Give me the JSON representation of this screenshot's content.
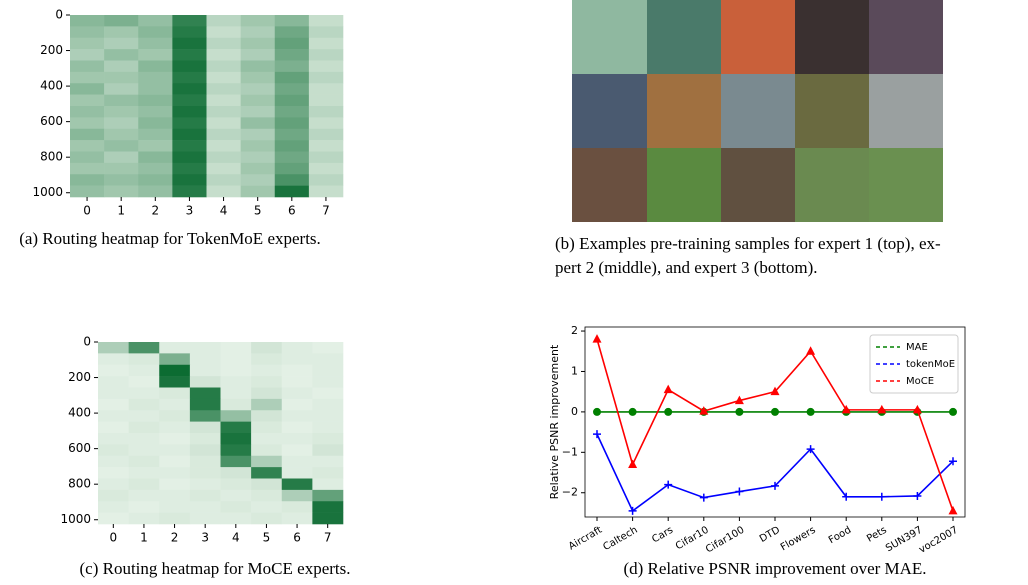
{
  "chart_data": [
    {
      "type": "heatmap",
      "caption": "(a) Routing heatmap for TokenMoE experts.",
      "ylim": [
        0,
        1024
      ],
      "yticks": [
        0,
        200,
        400,
        600,
        800,
        1000
      ],
      "xlim": [
        -0.5,
        7.5
      ],
      "xticks": [
        0,
        1,
        2,
        3,
        4,
        5,
        6,
        7
      ],
      "cells": [
        [
          0.45,
          0.5,
          0.4,
          0.8,
          0.25,
          0.35,
          0.45,
          0.2
        ],
        [
          0.4,
          0.35,
          0.45,
          0.85,
          0.2,
          0.3,
          0.55,
          0.25
        ],
        [
          0.35,
          0.3,
          0.4,
          0.9,
          0.25,
          0.35,
          0.6,
          0.2
        ],
        [
          0.3,
          0.4,
          0.35,
          0.85,
          0.2,
          0.3,
          0.55,
          0.25
        ],
        [
          0.4,
          0.3,
          0.45,
          0.9,
          0.25,
          0.4,
          0.5,
          0.2
        ],
        [
          0.35,
          0.35,
          0.4,
          0.85,
          0.2,
          0.35,
          0.6,
          0.25
        ],
        [
          0.45,
          0.3,
          0.4,
          0.9,
          0.25,
          0.3,
          0.55,
          0.2
        ],
        [
          0.35,
          0.4,
          0.45,
          0.85,
          0.2,
          0.35,
          0.6,
          0.2
        ],
        [
          0.4,
          0.35,
          0.4,
          0.9,
          0.25,
          0.3,
          0.55,
          0.25
        ],
        [
          0.35,
          0.3,
          0.45,
          0.85,
          0.2,
          0.4,
          0.6,
          0.2
        ],
        [
          0.45,
          0.35,
          0.4,
          0.9,
          0.25,
          0.3,
          0.55,
          0.25
        ],
        [
          0.35,
          0.4,
          0.35,
          0.85,
          0.2,
          0.35,
          0.6,
          0.2
        ],
        [
          0.4,
          0.3,
          0.45,
          0.9,
          0.25,
          0.3,
          0.55,
          0.25
        ],
        [
          0.35,
          0.35,
          0.4,
          0.85,
          0.2,
          0.35,
          0.6,
          0.2
        ],
        [
          0.45,
          0.4,
          0.45,
          0.9,
          0.25,
          0.3,
          0.7,
          0.25
        ],
        [
          0.4,
          0.35,
          0.4,
          0.85,
          0.2,
          0.35,
          0.9,
          0.2
        ]
      ]
    },
    {
      "type": "heatmap",
      "caption": "(c) Routing heatmap for MoCE experts.",
      "ylim": [
        0,
        1024
      ],
      "yticks": [
        0,
        200,
        400,
        600,
        800,
        1000
      ],
      "xlim": [
        -0.5,
        7.5
      ],
      "xticks": [
        0,
        1,
        2,
        3,
        4,
        5,
        6,
        7
      ],
      "cells": [
        [
          0.3,
          0.7,
          0.1,
          0.1,
          0.08,
          0.15,
          0.1,
          0.08
        ],
        [
          0.1,
          0.12,
          0.5,
          0.1,
          0.08,
          0.12,
          0.1,
          0.1
        ],
        [
          0.08,
          0.1,
          0.95,
          0.1,
          0.08,
          0.1,
          0.08,
          0.1
        ],
        [
          0.1,
          0.08,
          0.9,
          0.15,
          0.1,
          0.12,
          0.08,
          0.1
        ],
        [
          0.1,
          0.1,
          0.12,
          0.85,
          0.1,
          0.15,
          0.1,
          0.08
        ],
        [
          0.08,
          0.12,
          0.1,
          0.85,
          0.12,
          0.3,
          0.08,
          0.1
        ],
        [
          0.1,
          0.1,
          0.12,
          0.7,
          0.4,
          0.15,
          0.1,
          0.1
        ],
        [
          0.08,
          0.12,
          0.1,
          0.15,
          0.85,
          0.12,
          0.08,
          0.1
        ],
        [
          0.1,
          0.1,
          0.08,
          0.12,
          0.9,
          0.1,
          0.1,
          0.12
        ],
        [
          0.12,
          0.1,
          0.1,
          0.15,
          0.85,
          0.12,
          0.08,
          0.15
        ],
        [
          0.1,
          0.12,
          0.08,
          0.12,
          0.7,
          0.3,
          0.1,
          0.1
        ],
        [
          0.08,
          0.1,
          0.1,
          0.12,
          0.15,
          0.8,
          0.1,
          0.12
        ],
        [
          0.1,
          0.12,
          0.08,
          0.1,
          0.12,
          0.15,
          0.85,
          0.1
        ],
        [
          0.12,
          0.1,
          0.1,
          0.12,
          0.1,
          0.12,
          0.3,
          0.6
        ],
        [
          0.1,
          0.08,
          0.1,
          0.1,
          0.12,
          0.1,
          0.12,
          0.9
        ],
        [
          0.08,
          0.1,
          0.12,
          0.1,
          0.1,
          0.12,
          0.1,
          0.9
        ]
      ]
    },
    {
      "type": "line",
      "caption": "(d) Relative PSNR improvement over MAE.",
      "y_label": "Relative PSNR improvement",
      "categories": [
        "Aircraft",
        "Caltech",
        "Cars",
        "Cifar10",
        "Cifar100",
        "DTD",
        "Flowers",
        "Food",
        "Pets",
        "SUN397",
        "voc2007"
      ],
      "ylim": [
        -2.6,
        2.1
      ],
      "yticks": [
        {
          "value": -2,
          "label": "−2"
        },
        {
          "value": -1,
          "label": "−1"
        },
        0,
        1,
        2
      ],
      "legend": "upper right",
      "series": [
        {
          "name": "MAE",
          "color": "#008000",
          "marker": "circle",
          "values": [
            0,
            0,
            0,
            0,
            0,
            0,
            0,
            0,
            0,
            0,
            0
          ]
        },
        {
          "name": "tokenMoE",
          "color": "#0000ff",
          "marker": "plus",
          "values": [
            -0.55,
            -2.45,
            -1.8,
            -2.12,
            -1.97,
            -1.83,
            -0.92,
            -2.1,
            -2.1,
            -2.08,
            -1.22
          ]
        },
        {
          "name": "MoCE",
          "color": "#ff0000",
          "marker": "triangle",
          "values": [
            1.8,
            -1.3,
            0.55,
            0.02,
            0.28,
            0.5,
            1.5,
            0.05,
            0.05,
            0.05,
            -2.45
          ]
        }
      ]
    }
  ],
  "image_panel": {
    "caption": [
      "(b) Examples pre-training samples for expert 1 (top), ex-",
      "pert 2 (middle), and expert 3 (bottom)."
    ]
  }
}
